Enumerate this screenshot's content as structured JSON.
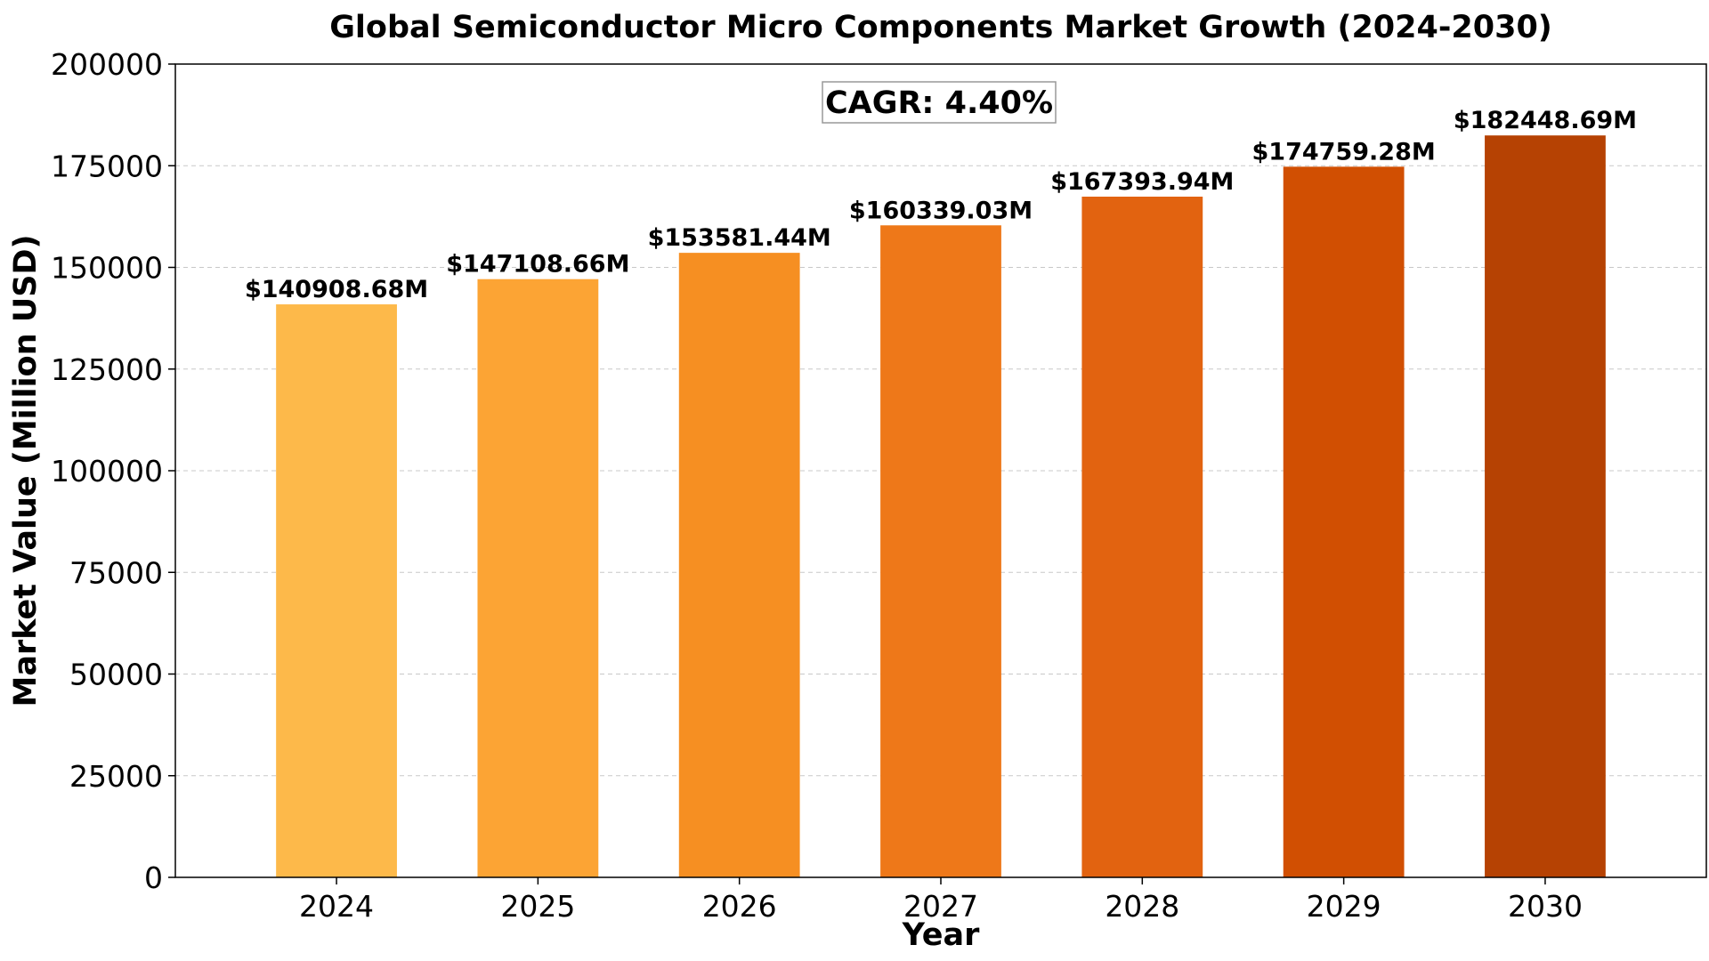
{
  "chart_data": {
    "type": "bar",
    "title": "Global Semiconductor Micro Components Market Growth (2024-2030)",
    "xlabel": "Year",
    "ylabel": "Market Value (Million USD)",
    "categories": [
      "2024",
      "2025",
      "2026",
      "2027",
      "2028",
      "2029",
      "2030"
    ],
    "values": [
      140908.68,
      147108.66,
      153581.44,
      160339.03,
      167393.94,
      174759.28,
      182448.69
    ],
    "value_labels": [
      "$140908.68M",
      "$147108.66M",
      "$153581.44M",
      "$160339.03M",
      "$167393.94M",
      "$174759.28M",
      "$182448.69M"
    ],
    "bar_colors": [
      "#FDB94A",
      "#FCA434",
      "#F68F22",
      "#EE7819",
      "#E26310",
      "#D14F02",
      "#B64203"
    ],
    "ylim": [
      0,
      200000
    ],
    "yticks": [
      0,
      25000,
      50000,
      75000,
      100000,
      125000,
      150000,
      175000,
      200000
    ],
    "ytick_labels": [
      "0",
      "25000",
      "50000",
      "75000",
      "100000",
      "125000",
      "150000",
      "175000",
      "200000"
    ],
    "grid": "horizontal dashed",
    "annotation": "CAGR: 4.40%"
  }
}
